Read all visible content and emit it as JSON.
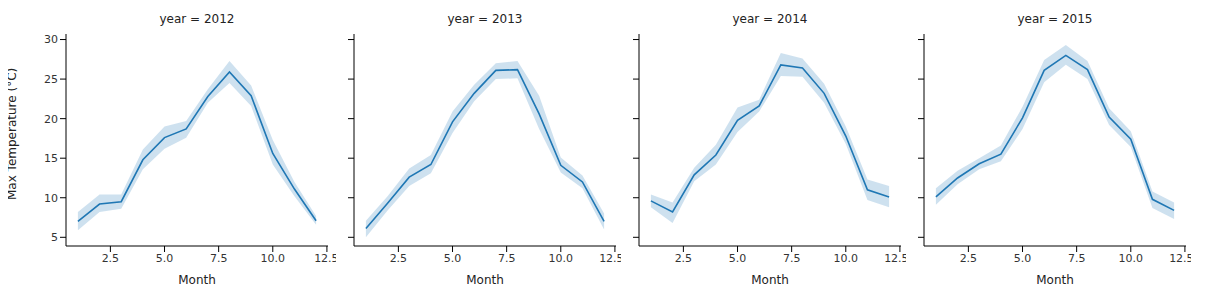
{
  "chart_data": [
    {
      "type": "line",
      "title": "year = 2012",
      "x_label": "Month",
      "y_label": "Max Temperature (°C)",
      "color": "#1f77b4",
      "x": [
        1,
        2,
        3,
        4,
        5,
        6,
        7,
        8,
        9,
        10,
        11,
        12
      ],
      "values": [
        7.0,
        9.2,
        9.5,
        14.8,
        17.6,
        18.7,
        22.8,
        25.9,
        22.9,
        15.6,
        11.1,
        7.1
      ],
      "ci_lower": [
        5.9,
        8.2,
        8.6,
        13.6,
        16.2,
        17.6,
        22.0,
        24.5,
        21.6,
        14.2,
        10.2,
        6.6
      ],
      "ci_upper": [
        8.2,
        10.4,
        10.4,
        16.1,
        19.0,
        19.7,
        23.7,
        27.3,
        24.2,
        17.3,
        12.0,
        7.7
      ],
      "xlim": [
        0.45,
        12.55
      ],
      "xticks": [
        2.5,
        {
          "value": 5,
          "label": "5.0"
        },
        7.5,
        {
          "value": 10,
          "label": "10.0"
        },
        12.5
      ],
      "ylim": [
        3.9,
        30.7
      ],
      "yticks": [
        5,
        10,
        15,
        20,
        25,
        30
      ]
    },
    {
      "type": "line",
      "title": "year = 2013",
      "x_label": "Month",
      "color": "#1f77b4",
      "tick_labels": "x",
      "x": [
        1,
        2,
        3,
        4,
        5,
        6,
        7,
        8,
        9,
        10,
        11,
        12
      ],
      "values": [
        6.1,
        9.3,
        12.6,
        14.2,
        19.6,
        23.2,
        26.1,
        26.2,
        20.6,
        14.1,
        12.0,
        7.0
      ],
      "ci_lower": [
        5.0,
        8.4,
        11.5,
        13.1,
        18.2,
        22.2,
        25.0,
        25.1,
        18.7,
        13.2,
        11.2,
        6.0
      ],
      "ci_upper": [
        7.1,
        10.2,
        13.7,
        15.4,
        20.9,
        24.3,
        27.0,
        27.3,
        22.9,
        15.1,
        12.8,
        8.0
      ],
      "xlim": [
        0.45,
        12.55
      ],
      "xticks": [
        2.5,
        {
          "value": 5,
          "label": "5.0"
        },
        7.5,
        {
          "value": 10,
          "label": "10.0"
        },
        12.5
      ],
      "ylim": [
        3.9,
        30.7
      ],
      "yticks": [
        5,
        10,
        15,
        20,
        25,
        30
      ]
    },
    {
      "type": "line",
      "title": "year = 2014",
      "x_label": "Month",
      "color": "#1f77b4",
      "tick_labels": "x",
      "x": [
        1,
        2,
        3,
        4,
        5,
        6,
        7,
        8,
        9,
        10,
        11,
        12
      ],
      "values": [
        9.6,
        8.2,
        12.9,
        15.4,
        19.8,
        21.6,
        26.8,
        26.4,
        23.2,
        17.8,
        11.0,
        10.1
      ],
      "ci_lower": [
        8.8,
        6.8,
        12.1,
        14.2,
        18.3,
        20.9,
        25.4,
        25.3,
        22.0,
        16.8,
        9.7,
        8.8
      ],
      "ci_upper": [
        10.4,
        9.4,
        13.8,
        16.7,
        21.4,
        22.4,
        28.3,
        27.6,
        24.4,
        19.0,
        12.3,
        11.5
      ],
      "xlim": [
        0.45,
        12.55
      ],
      "xticks": [
        2.5,
        {
          "value": 5,
          "label": "5.0"
        },
        7.5,
        {
          "value": 10,
          "label": "10.0"
        },
        12.5
      ],
      "ylim": [
        3.9,
        30.7
      ],
      "yticks": [
        5,
        10,
        15,
        20,
        25,
        30
      ]
    },
    {
      "type": "line",
      "title": "year = 2015",
      "x_label": "Month",
      "color": "#1f77b4",
      "tick_labels": "x",
      "x": [
        1,
        2,
        3,
        4,
        5,
        6,
        7,
        8,
        9,
        10,
        11,
        12
      ],
      "values": [
        10.1,
        12.5,
        14.3,
        15.5,
        20.1,
        26.1,
        28.0,
        26.2,
        20.2,
        17.4,
        9.8,
        8.4
      ],
      "ci_lower": [
        9.1,
        11.7,
        13.6,
        14.6,
        18.7,
        24.6,
        26.8,
        25.0,
        19.2,
        16.4,
        8.7,
        7.3
      ],
      "ci_upper": [
        11.2,
        13.4,
        15.0,
        16.6,
        21.5,
        27.4,
        29.3,
        27.3,
        21.3,
        18.4,
        10.8,
        9.4
      ],
      "xlim": [
        0.45,
        12.55
      ],
      "xticks": [
        2.5,
        {
          "value": 5,
          "label": "5.0"
        },
        7.5,
        {
          "value": 10,
          "label": "10.0"
        },
        12.5
      ],
      "ylim": [
        3.9,
        30.7
      ],
      "yticks": [
        5,
        10,
        15,
        20,
        25,
        30
      ]
    }
  ]
}
